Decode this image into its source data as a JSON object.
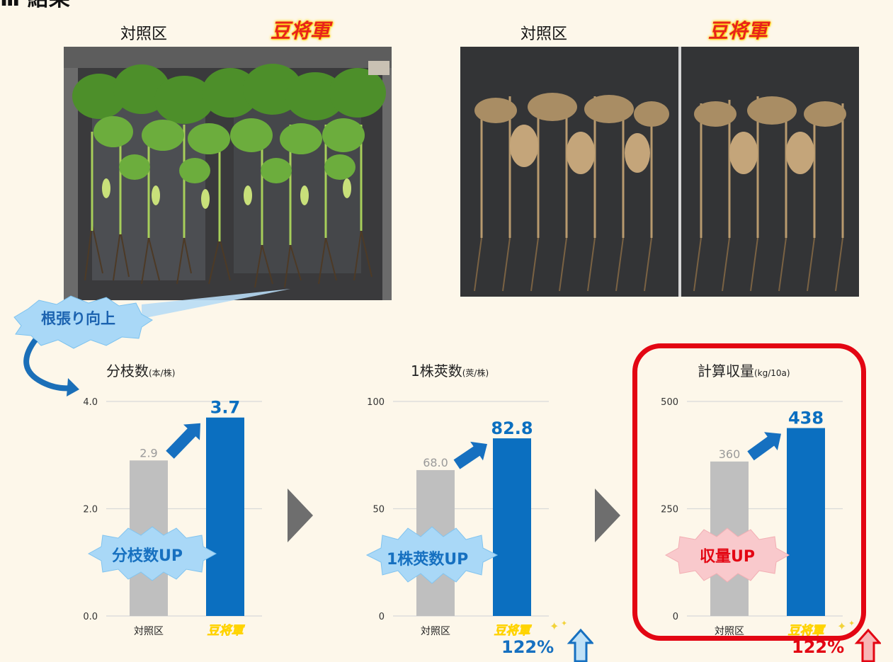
{
  "header": {
    "title": "Ⅲ 結果"
  },
  "photos": {
    "left": {
      "control_label": "対照区",
      "brand_label": "豆将軍"
    },
    "right": {
      "control_label": "対照区",
      "brand_label": "豆将軍"
    }
  },
  "callouts": {
    "root": "根張り向上",
    "branch": "分枝数UP",
    "pods": "1株莢数UP",
    "yield": "収量UP"
  },
  "percentages": {
    "pods": "122%",
    "yield": "122%"
  },
  "colors": {
    "control": "#bfbfbf",
    "treatment": "#0b6fc0",
    "highlight": "#e30613",
    "accent_blue": "#1670c0"
  },
  "chart_data": [
    {
      "type": "bar",
      "title": "分枝数",
      "unit": "(本/株)",
      "categories": [
        "対照区",
        "豆将軍"
      ],
      "values": [
        2.9,
        3.7
      ],
      "value_labels": [
        "2.9",
        "3.7"
      ],
      "ylim": [
        0,
        4
      ],
      "yticks": [
        "0.0",
        "2.0",
        "4.0"
      ],
      "ytick_values": [
        0,
        2,
        4
      ]
    },
    {
      "type": "bar",
      "title": "1株莢数",
      "unit": "(莢/株)",
      "categories": [
        "対照区",
        "豆将軍"
      ],
      "values": [
        68.0,
        82.8
      ],
      "value_labels": [
        "68.0",
        "82.8"
      ],
      "ylim": [
        0,
        100
      ],
      "yticks": [
        "0",
        "50",
        "100"
      ],
      "ytick_values": [
        0,
        50,
        100
      ]
    },
    {
      "type": "bar",
      "title": "計算収量",
      "unit": "(kg/10a)",
      "categories": [
        "対照区",
        "豆将軍"
      ],
      "values": [
        360,
        438
      ],
      "value_labels": [
        "360",
        "438"
      ],
      "ylim": [
        0,
        500
      ],
      "yticks": [
        "0",
        "250",
        "500"
      ],
      "ytick_values": [
        0,
        250,
        500
      ]
    }
  ]
}
